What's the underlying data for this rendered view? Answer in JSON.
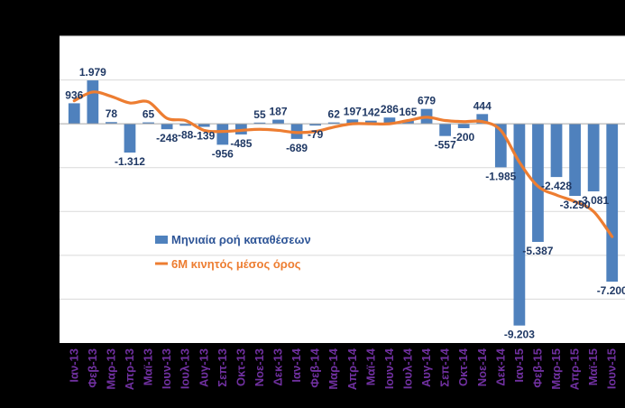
{
  "chart_data": {
    "type": "bar",
    "categories": [
      "Ιαν-13",
      "Φεβ-13",
      "Μαρ-13",
      "Απρ-13",
      "Μαϊ-13",
      "Ιουν-13",
      "Ιουλ-13",
      "Αυγ-13",
      "Σεπ-13",
      "Οκτ-13",
      "Νοε-13",
      "Δεκ-13",
      "Ιαν-14",
      "Φεβ-14",
      "Μαρ-14",
      "Απρ-14",
      "Μαϊ-14",
      "Ιουν-14",
      "Ιουλ-14",
      "Αυγ-14",
      "Σεπ-14",
      "Οκτ-14",
      "Νοε-14",
      "Δεκ-14",
      "Ιαν-15",
      "Φεβ-15",
      "Μαρ-15",
      "Απρ-15",
      "Μαϊ-15",
      "Ιουν-15"
    ],
    "series": [
      {
        "name": "Μηνιαία ροή καταθέσεων",
        "type": "bar",
        "color": "#4f81bd",
        "values": [
          936,
          1979,
          78,
          -1312,
          65,
          -248,
          -88,
          -139,
          -956,
          -485,
          55,
          187,
          -689,
          -79,
          62,
          197,
          142,
          286,
          165,
          679,
          -557,
          -200,
          444,
          -1985,
          -9203,
          -5387,
          -2428,
          -3290,
          -3081,
          -7200
        ],
        "labels": [
          "936",
          "1.979",
          "78",
          "-1.312",
          "65",
          "-248",
          "-88",
          "-139",
          "-956",
          "-485",
          "55",
          "187",
          "-689",
          "-79",
          "62",
          "197",
          "142",
          "286",
          "165",
          "679",
          "-557",
          "-200",
          "444",
          "-1.985",
          "-9.203",
          "-5.387",
          "-2.428",
          "-3.290",
          "-3.081",
          "-7.200"
        ]
      },
      {
        "name": "6M κινητός μέσος όρος",
        "type": "line",
        "color": "#ed7d31",
        "values": [
          1050,
          1450,
          1250,
          950,
          1000,
          250,
          150,
          -300,
          -350,
          -300,
          -250,
          -300,
          -400,
          -350,
          -150,
          0,
          0,
          0,
          150,
          300,
          150,
          100,
          100,
          -300,
          -1750,
          -2850,
          -3250,
          -3550,
          -4000,
          -5150
        ]
      }
    ],
    "ylim": [
      -10000,
      4000
    ],
    "grid": true,
    "legend": "center-left"
  }
}
